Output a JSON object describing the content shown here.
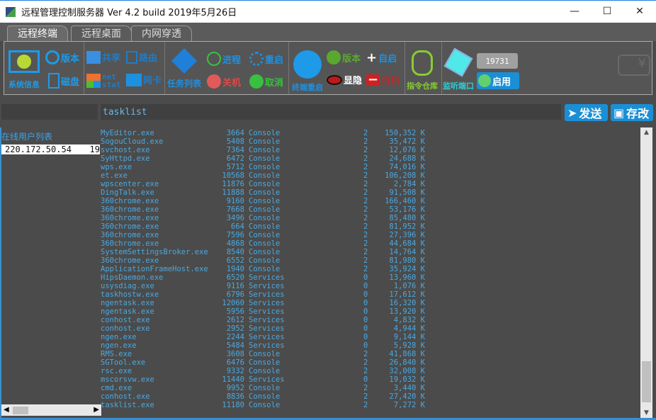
{
  "window": {
    "title": "远程管理控制服务器 Ver 4.2 build 2019年5月26日",
    "minimize": "—",
    "maximize": "☐",
    "close": "✕"
  },
  "tabs": [
    {
      "label": "远程终端",
      "active": true
    },
    {
      "label": "远程桌面",
      "active": false
    },
    {
      "label": "内网穿透",
      "active": false
    }
  ],
  "toolbar": {
    "sysinfo": "系统信息",
    "version": "版本",
    "disk": "磁盘",
    "share": "共享",
    "route": "路由",
    "netstat_top": "net",
    "netstat_bottom": "stat",
    "nic": "网卡",
    "tasklist": "任务列表",
    "process": "进程",
    "restart": "重启",
    "shutdown": "关机",
    "cancel": "取消",
    "terminal_restart": "终端重启",
    "client_version": "版本",
    "autostart_add": "自启",
    "showhide": "显隐",
    "autostart_remove": "自启",
    "cmd_store": "指令仓库",
    "listen_port": "监听端口",
    "port_value": "19731",
    "enable": "启用"
  },
  "command": {
    "value": "tasklist",
    "send": "发送",
    "save": "存改"
  },
  "users": {
    "header": "在线用户列表",
    "items": [
      {
        "ip": "220.172.50.54",
        "port": "19"
      }
    ]
  },
  "processes": [
    [
      "MyEditor.exe",
      "3664",
      "Console",
      "2",
      "150,352 K"
    ],
    [
      "SogouCloud.exe",
      "5408",
      "Console",
      "2",
      "35,472 K"
    ],
    [
      "svchost.exe",
      "7364",
      "Console",
      "2",
      "12,076 K"
    ],
    [
      "SyHttpd.exe",
      "6472",
      "Console",
      "2",
      "24,688 K"
    ],
    [
      "wps.exe",
      "5712",
      "Console",
      "2",
      "74,016 K"
    ],
    [
      "et.exe",
      "10568",
      "Console",
      "2",
      "106,208 K"
    ],
    [
      "wpscenter.exe",
      "11876",
      "Console",
      "2",
      "2,784 K"
    ],
    [
      "DingTalk.exe",
      "11888",
      "Console",
      "2",
      "91,508 K"
    ],
    [
      "360chrome.exe",
      "9160",
      "Console",
      "2",
      "166,460 K"
    ],
    [
      "360chrome.exe",
      "7668",
      "Console",
      "2",
      "53,176 K"
    ],
    [
      "360chrome.exe",
      "3496",
      "Console",
      "2",
      "85,480 K"
    ],
    [
      "360chrome.exe",
      "664",
      "Console",
      "2",
      "81,952 K"
    ],
    [
      "360chrome.exe",
      "7596",
      "Console",
      "2",
      "27,396 K"
    ],
    [
      "360chrome.exe",
      "4868",
      "Console",
      "2",
      "44,684 K"
    ],
    [
      "SystemSettingsBroker.exe",
      "8540",
      "Console",
      "2",
      "14,764 K"
    ],
    [
      "360chrome.exe",
      "6552",
      "Console",
      "2",
      "81,980 K"
    ],
    [
      "ApplicationFrameHost.exe",
      "1940",
      "Console",
      "2",
      "35,924 K"
    ],
    [
      "HipsDaemon.exe",
      "6520",
      "Services",
      "0",
      "13,960 K"
    ],
    [
      "usysdiag.exe",
      "9116",
      "Services",
      "0",
      "1,076 K"
    ],
    [
      "taskhostw.exe",
      "6796",
      "Services",
      "0",
      "17,612 K"
    ],
    [
      "ngentask.exe",
      "12060",
      "Services",
      "0",
      "16,320 K"
    ],
    [
      "ngentask.exe",
      "5956",
      "Services",
      "0",
      "13,920 K"
    ],
    [
      "conhost.exe",
      "2612",
      "Services",
      "0",
      "4,832 K"
    ],
    [
      "conhost.exe",
      "2952",
      "Services",
      "0",
      "4,944 K"
    ],
    [
      "ngen.exe",
      "2244",
      "Services",
      "0",
      "9,144 K"
    ],
    [
      "ngen.exe",
      "5484",
      "Services",
      "0",
      "5,928 K"
    ],
    [
      "RMS.exe",
      "3608",
      "Console",
      "2",
      "41,868 K"
    ],
    [
      "SGTool.exe",
      "6476",
      "Console",
      "2",
      "26,840 K"
    ],
    [
      "rsc.exe",
      "9332",
      "Console",
      "2",
      "32,008 K"
    ],
    [
      "mscorsvw.exe",
      "11440",
      "Services",
      "0",
      "19,032 K"
    ],
    [
      "cmd.exe",
      "9952",
      "Console",
      "2",
      "3,440 K"
    ],
    [
      "conhost.exe",
      "8836",
      "Console",
      "2",
      "27,420 K"
    ],
    [
      "tasklist.exe",
      "11180",
      "Console",
      "2",
      "7,272 K"
    ]
  ],
  "colors": {
    "background": "#4b4b4b",
    "text": "#4aa8e0",
    "accent": "#1b8fd6"
  }
}
